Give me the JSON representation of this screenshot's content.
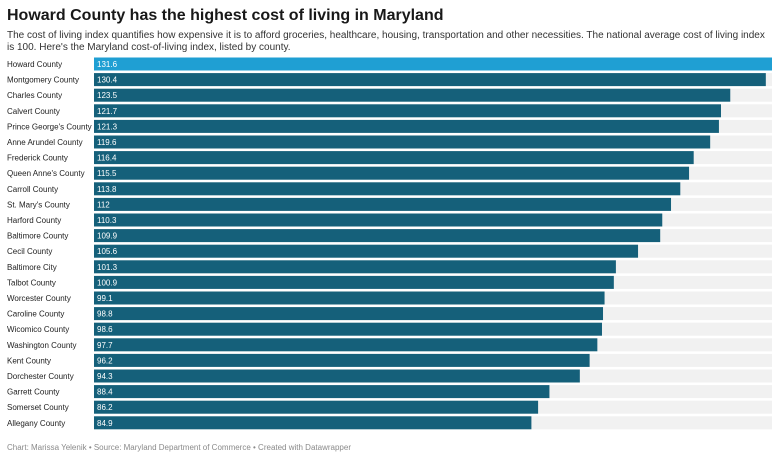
{
  "header": {
    "title": "Howard County has the highest cost of living in Maryland",
    "subtitle": "The cost of living index quantifies how expensive it is to afford groceries, healthcare, housing, transportation and other necessities. The national average cost of living index is 100. Here's the Maryland cost-of-living index, listed by county."
  },
  "chart_data": {
    "type": "bar",
    "orientation": "horizontal",
    "categories": [
      "Howard County",
      "Montgomery County",
      "Charles County",
      "Calvert County",
      "Prince George's County",
      "Anne Arundel County",
      "Frederick County",
      "Queen Anne's County",
      "Carroll County",
      "St. Mary's County",
      "Harford County",
      "Baltimore County",
      "Cecil County",
      "Baltimore City",
      "Talbot County",
      "Worcester County",
      "Caroline County",
      "Wicomico County",
      "Washington County",
      "Kent County",
      "Dorchester County",
      "Garrett County",
      "Somerset County",
      "Allegany County"
    ],
    "values": [
      131.6,
      130.4,
      123.5,
      121.7,
      121.3,
      119.6,
      116.4,
      115.5,
      113.8,
      112,
      110.3,
      109.9,
      105.6,
      101.3,
      100.9,
      99.1,
      98.8,
      98.6,
      97.7,
      96.2,
      94.3,
      88.4,
      86.2,
      84.9
    ],
    "value_labels": [
      "131.6",
      "130.4",
      "123.5",
      "121.7",
      "121.3",
      "119.6",
      "116.4",
      "115.5",
      "113.8",
      "112",
      "110.3",
      "109.9",
      "105.6",
      "101.3",
      "100.9",
      "99.1",
      "98.8",
      "98.6",
      "97.7",
      "96.2",
      "94.3",
      "88.4",
      "86.2",
      "84.9"
    ],
    "xlim": [
      0,
      131.6
    ],
    "colors": {
      "highlight": "#1f9fd3",
      "bar": "#15607a",
      "track": "#f1f1f1",
      "label_text": "#ffffff"
    }
  },
  "footer": {
    "credit": "Chart: Marissa Yelenik",
    "source": "Source: Maryland Department of Commerce",
    "tool": "Created with Datawrapper"
  }
}
